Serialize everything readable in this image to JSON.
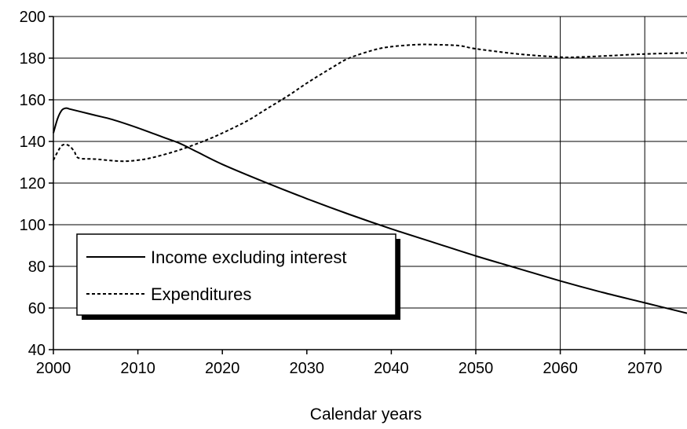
{
  "chart_data": {
    "type": "line",
    "title": "",
    "xlabel": "Calendar years",
    "ylabel": "",
    "xlim": [
      2000,
      2075
    ],
    "ylim": [
      40,
      200
    ],
    "x_ticks": [
      2000,
      2010,
      2020,
      2030,
      2040,
      2050,
      2060,
      2070
    ],
    "y_ticks": [
      40,
      60,
      80,
      100,
      120,
      140,
      160,
      180,
      200
    ],
    "x_tick_labels": [
      "2000",
      "2010",
      "2020",
      "2030",
      "2040",
      "2050",
      "2060",
      "2070"
    ],
    "y_tick_labels": [
      "40",
      "60",
      "80",
      "100",
      "120",
      "140",
      "160",
      "180",
      "200"
    ],
    "grid": {
      "horizontal_lines": [
        60,
        80,
        100,
        120,
        140,
        160,
        180
      ],
      "vertical_lines": [
        2050,
        2060,
        2070
      ]
    },
    "legend": {
      "placement": "lower-left",
      "entries": [
        "Income excluding interest",
        "Expenditures"
      ]
    },
    "series": [
      {
        "name": "Income excluding interest",
        "style": "solid",
        "color": "#000000",
        "x": [
          2000,
          2000.5,
          2001,
          2001.5,
          2002,
          2003,
          2005,
          2007,
          2010,
          2013,
          2015,
          2017,
          2020,
          2025,
          2030,
          2035,
          2040,
          2045,
          2050,
          2055,
          2060,
          2065,
          2070,
          2075
        ],
        "y": [
          144,
          151,
          155,
          156,
          155.5,
          154.5,
          152.5,
          150.5,
          146.5,
          142,
          139,
          135,
          129,
          120.5,
          112.5,
          105,
          98,
          91.5,
          85,
          79,
          73,
          67.5,
          62.5,
          57.5
        ]
      },
      {
        "name": "Expenditures",
        "style": "dotted",
        "color": "#000000",
        "x": [
          2000,
          2000.5,
          2001,
          2001.5,
          2002,
          2002.5,
          2003,
          2005,
          2008,
          2010,
          2012,
          2015,
          2018,
          2020,
          2023,
          2025,
          2028,
          2030,
          2033,
          2035,
          2038,
          2040,
          2043,
          2045,
          2048,
          2050,
          2055,
          2060,
          2062,
          2065,
          2070,
          2075
        ],
        "y": [
          131,
          135,
          138,
          138.5,
          137.5,
          135,
          132,
          131.5,
          130.5,
          131,
          132.5,
          136,
          140.5,
          144,
          150,
          155,
          162.5,
          168,
          175.5,
          180,
          184,
          185.5,
          186.5,
          186.5,
          186,
          184.5,
          182,
          180.5,
          180.5,
          181,
          182,
          182.5
        ]
      }
    ]
  }
}
